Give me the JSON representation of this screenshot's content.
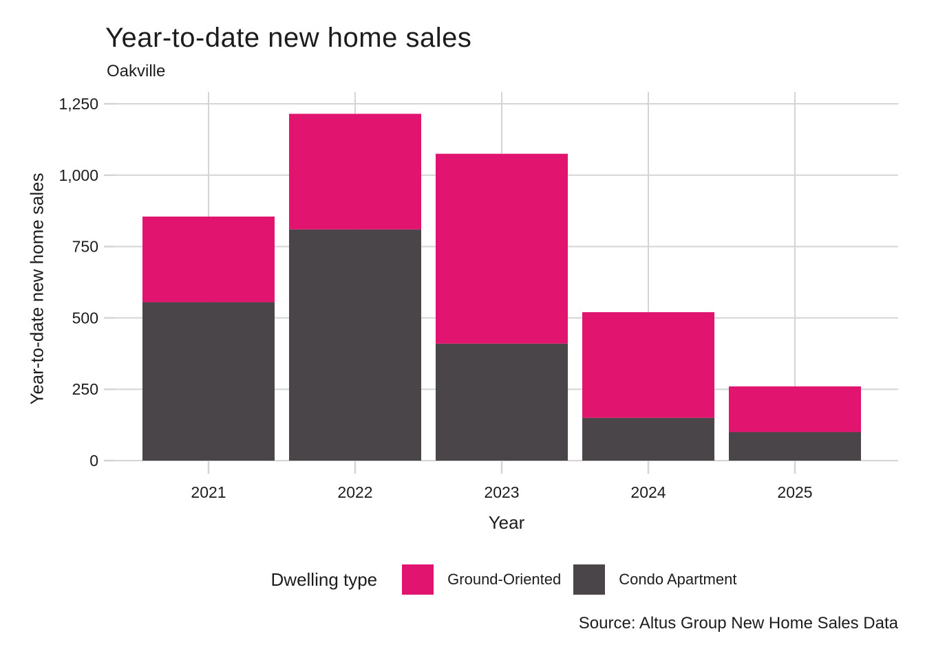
{
  "chart_data": {
    "type": "bar",
    "stacked": true,
    "title": "Year-to-date new home sales",
    "subtitle": "Oakville",
    "xlabel": "Year",
    "ylabel": "Year-to-date new home sales",
    "categories": [
      "2021",
      "2022",
      "2023",
      "2024",
      "2025"
    ],
    "series": [
      {
        "name": "Ground-Oriented",
        "color": "#e11570",
        "values": [
          300,
          405,
          665,
          370,
          160
        ]
      },
      {
        "name": "Condo Apartment",
        "color": "#494549",
        "values": [
          555,
          810,
          410,
          150,
          100
        ]
      }
    ],
    "stack_note": "Condo Apartment is the bottom segment, Ground-Oriented stacked on top",
    "totals": [
      855,
      1215,
      1075,
      520,
      260
    ],
    "ylim": [
      0,
      1250
    ],
    "yticks": [
      0,
      250,
      500,
      750,
      1000,
      1250
    ],
    "ytick_labels": [
      "0",
      "250",
      "500",
      "750",
      "1,000",
      "1,250"
    ],
    "grid": true,
    "legend_title": "Dwelling type",
    "legend_position": "bottom",
    "source": "Source: Altus Group New Home Sales Data",
    "colors": {
      "text": "#1c1c1c",
      "grid": "#d4d4d4",
      "background": "#ffffff"
    }
  }
}
